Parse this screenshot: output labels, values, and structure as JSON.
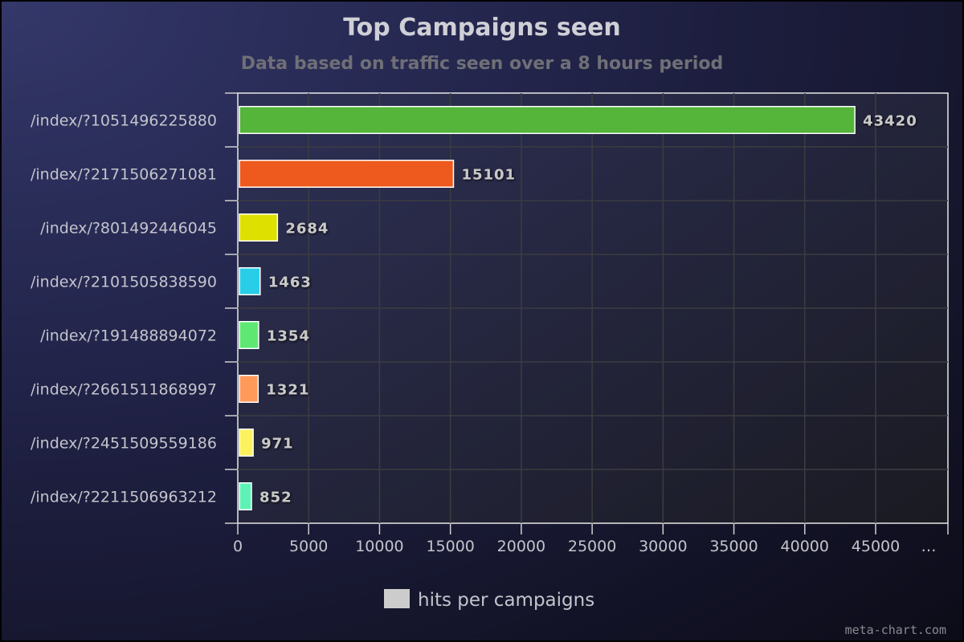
{
  "chart_data": {
    "type": "bar",
    "orientation": "horizontal",
    "title": "Top Campaigns seen",
    "subtitle": "Data based on traffic seen over a 8 hours period",
    "categories": [
      "/index/?1051496225880",
      "/index/?2171506271081",
      "/index/?801492446045",
      "/index/?2101505838590",
      "/index/?191488894072",
      "/index/?2661511868997",
      "/index/?2451509559186",
      "/index/?2211506963212"
    ],
    "series": [
      {
        "name": "hits per campaigns",
        "values": [
          43420,
          15101,
          2684,
          1463,
          1354,
          1321,
          971,
          852
        ]
      }
    ],
    "bar_colors": [
      "#55b43a",
      "#ee5a1e",
      "#dee000",
      "#2acde8",
      "#5ee873",
      "#ff9a5a",
      "#fcf25e",
      "#5ef2b6"
    ],
    "xlim": [
      0,
      50000
    ],
    "x_ticks": [
      "0",
      "5000",
      "10000",
      "15000",
      "20000",
      "25000",
      "30000",
      "35000",
      "40000",
      "45000",
      "…"
    ],
    "grid": true,
    "legend": {
      "position": "bottom-center",
      "label": "hits per campaigns",
      "swatch_color": "#cccccc"
    }
  },
  "credit": "meta-chart.com"
}
